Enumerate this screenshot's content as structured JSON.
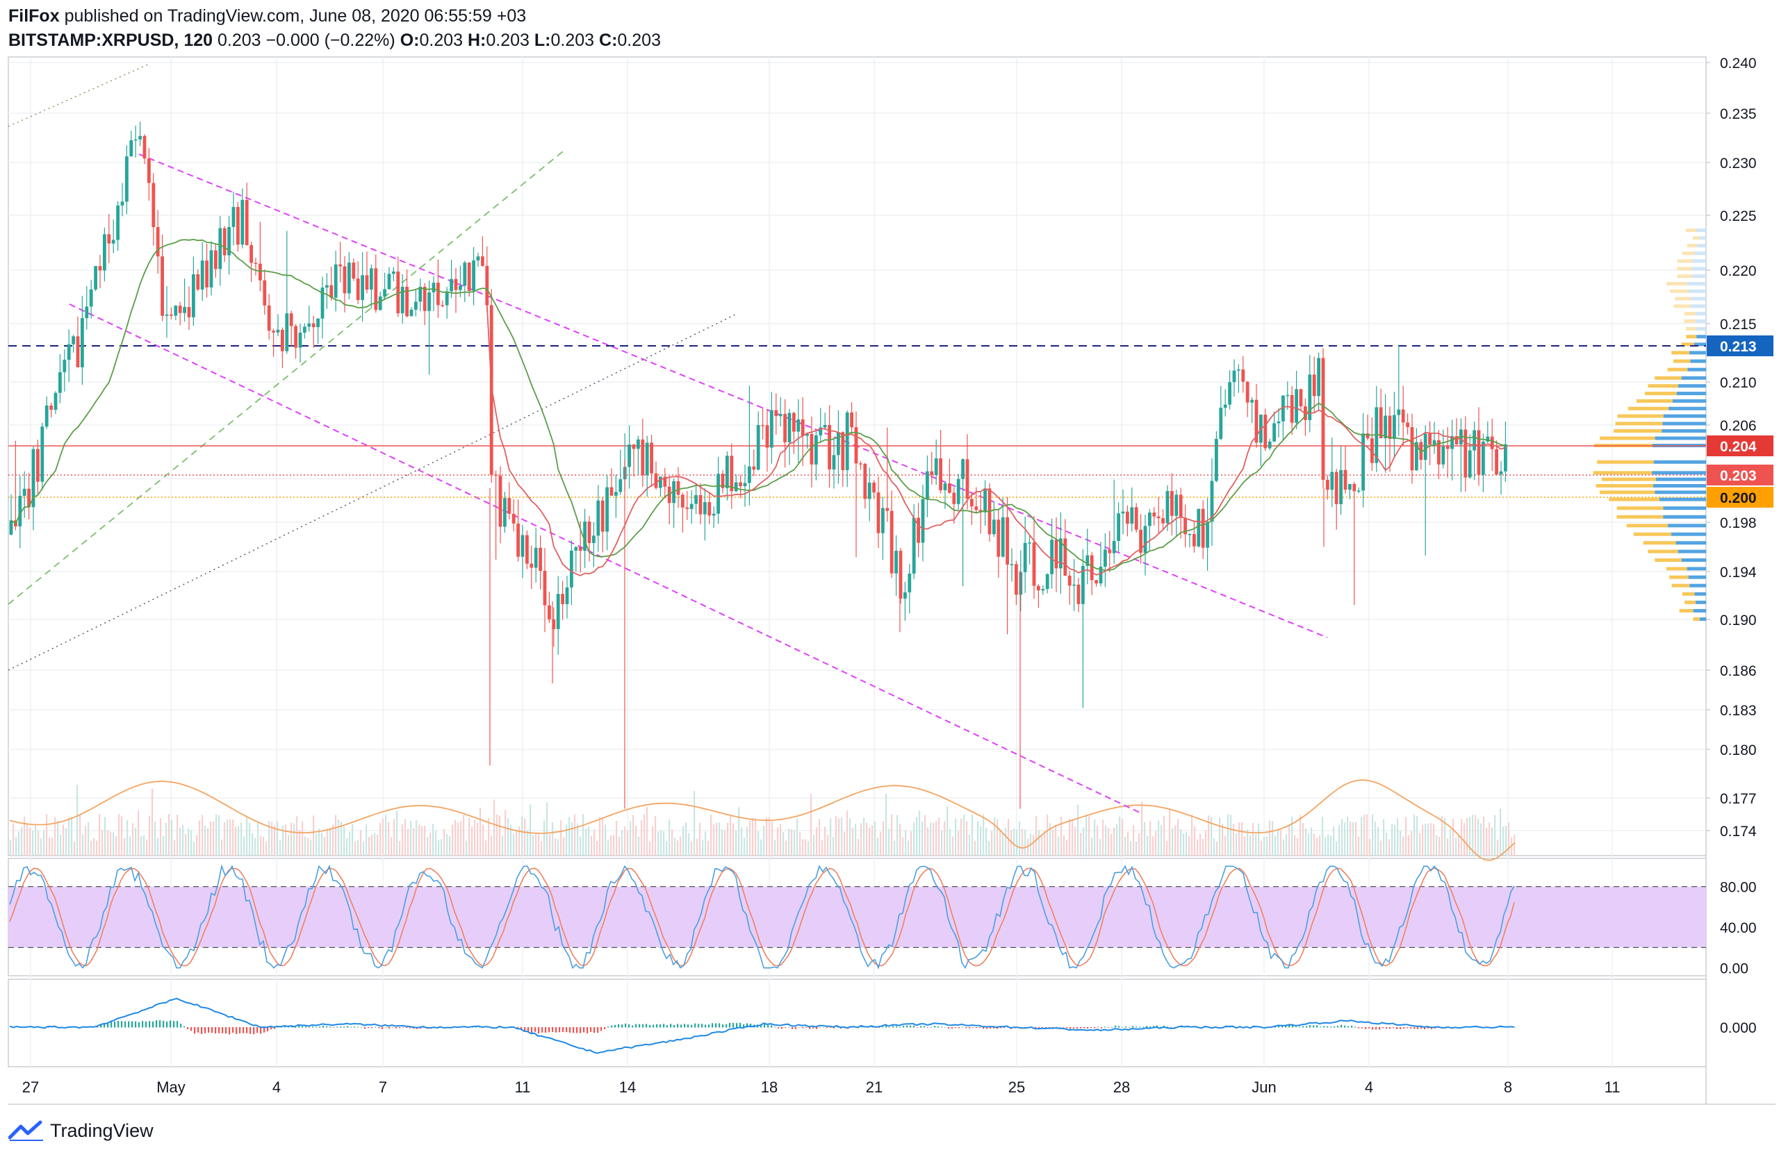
{
  "header": {
    "author": "FilFox",
    "published_text": "published on TradingView.com, June 08, 2020 06:55:59 +03",
    "symbol": "BITSTAMP:XRPUSD, 120",
    "quote": "0.203 −0.000 (−0.22%)",
    "o_label": "O:",
    "o_value": "0.203",
    "h_label": "H:",
    "h_value": "0.203",
    "l_label": "L:",
    "l_value": "0.203",
    "c_label": "C:",
    "c_value": "0.203"
  },
  "footer": {
    "brand": "TradingView"
  },
  "colors": {
    "up": "#26a69a",
    "down": "#ef5350",
    "pattern": "#e040fb",
    "volume_ma": "#f4a460",
    "ma_line": "#5a9e48",
    "ema_line": "#e06060",
    "resistance_dash": "#1a237e",
    "support_dot": "#ffa000",
    "current_price": "#ef5350",
    "stoch_k": "#4a9fe0",
    "stoch_d": "#f08060",
    "stoch_band": "#e4c9fa",
    "macd_line": "#1e88e5",
    "signal_line": "#ef6c00",
    "vp_yellow": "#f7c450",
    "vp_blue": "#4a9fe0"
  },
  "chart_data": [
    {
      "type": "candlestick",
      "title": "BITSTAMP:XRPUSD, 120",
      "x_ticks": [
        "27",
        "May",
        "4",
        "7",
        "11",
        "14",
        "18",
        "21",
        "25",
        "28",
        "Jun",
        "4",
        "8",
        "11"
      ],
      "y_ticks": [
        "0.174",
        "0.177",
        "0.180",
        "0.183",
        "0.186",
        "0.190",
        "0.194",
        "0.198",
        "0.202",
        "0.206",
        "0.210",
        "0.215",
        "0.220",
        "0.225",
        "0.230",
        "0.235",
        "0.240"
      ],
      "ylim": [
        0.172,
        0.24
      ],
      "price_labels": [
        {
          "value": "0.213",
          "role": "resistance"
        },
        {
          "value": "0.204",
          "role": "ma"
        },
        {
          "value": "0.203",
          "role": "last"
        },
        {
          "value": "0.200",
          "role": "support"
        }
      ],
      "anchors": [
        {
          "x": "27",
          "price": 0.197
        },
        {
          "x": "29",
          "price": 0.213
        },
        {
          "x": "30",
          "price": 0.233
        },
        {
          "x": "May 1",
          "price": 0.214
        },
        {
          "x": "May 2",
          "price": 0.22
        },
        {
          "x": "May 3",
          "price": 0.225
        },
        {
          "x": "May 4",
          "price": 0.213
        },
        {
          "x": "May 5",
          "price": 0.219
        },
        {
          "x": "May 7",
          "price": 0.218
        },
        {
          "x": "May 8",
          "price": 0.217
        },
        {
          "x": "May 10",
          "price": 0.221
        },
        {
          "x": "May 10 late",
          "price": 0.201
        },
        {
          "x": "May 11",
          "price": 0.196
        },
        {
          "x": "May 12",
          "price": 0.191
        },
        {
          "x": "May 13",
          "price": 0.198
        },
        {
          "x": "May 14",
          "price": 0.204
        },
        {
          "x": "May 16",
          "price": 0.199
        },
        {
          "x": "May 17",
          "price": 0.202
        },
        {
          "x": "May 18",
          "price": 0.206
        },
        {
          "x": "May 20",
          "price": 0.205
        },
        {
          "x": "May 21",
          "price": 0.2
        },
        {
          "x": "May 22",
          "price": 0.193
        },
        {
          "x": "May 22 late",
          "price": 0.202
        },
        {
          "x": "May 24",
          "price": 0.201
        },
        {
          "x": "May 25",
          "price": 0.194
        },
        {
          "x": "May 26",
          "price": 0.195
        },
        {
          "x": "May 27",
          "price": 0.193
        },
        {
          "x": "May 28",
          "price": 0.197
        },
        {
          "x": "May 30",
          "price": 0.199
        },
        {
          "x": "May 31",
          "price": 0.197
        },
        {
          "x": "May 31 late",
          "price": 0.211
        },
        {
          "x": "Jun 1",
          "price": 0.205
        },
        {
          "x": "Jun 2",
          "price": 0.21
        },
        {
          "x": "Jun 2 late",
          "price": 0.201
        },
        {
          "x": "Jun 3",
          "price": 0.203
        },
        {
          "x": "Jun 4",
          "price": 0.206
        },
        {
          "x": "Jun 6",
          "price": 0.204
        },
        {
          "x": "Jun 7",
          "price": 0.204
        },
        {
          "x": "Jun 8",
          "price": 0.203
        }
      ]
    },
    {
      "type": "line",
      "title": "Stochastic RSI",
      "y_ticks": [
        "80.00",
        "40.00",
        "0.00"
      ],
      "ylim": [
        -5,
        105
      ],
      "bands": [
        20,
        80
      ]
    },
    {
      "type": "line",
      "title": "MACD",
      "y_ticks": [
        "0.000"
      ],
      "ylim": [
        -0.012,
        0.012
      ],
      "series": [
        {
          "values": [
            0.0,
            0.0,
            0.009,
            0.0,
            0.001,
            0.0,
            0.0,
            -0.008,
            -0.004,
            0.001,
            0.0,
            0.001,
            0.0,
            -0.001,
            0.0,
            0.0,
            0.002,
            0.0,
            0.0
          ]
        }
      ]
    }
  ]
}
